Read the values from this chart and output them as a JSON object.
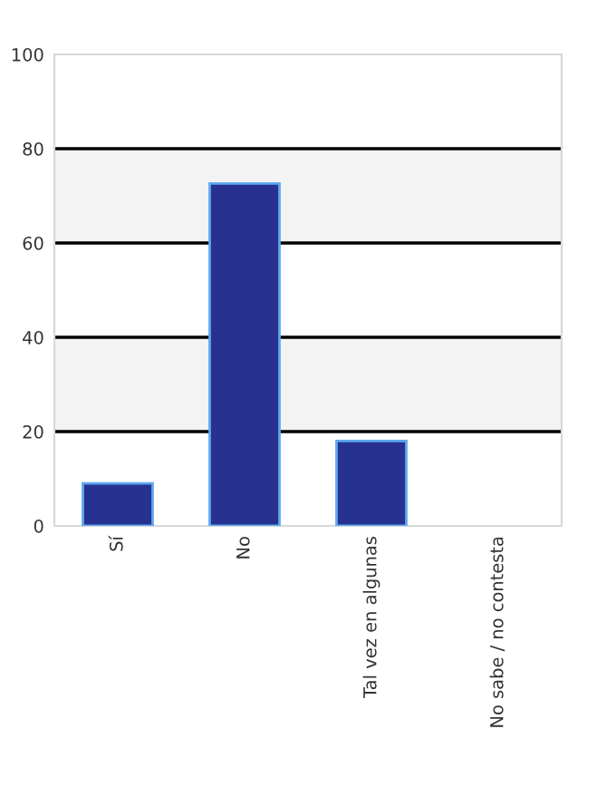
{
  "chart_data": {
    "type": "bar",
    "categories": [
      "Sí",
      "No",
      "Tal vez en algunas",
      "No sabe / no contesta"
    ],
    "values": [
      9,
      72.6,
      18,
      0
    ],
    "color": "#27318f",
    "ylim": [
      0,
      100
    ],
    "yticks": [
      0,
      20,
      40,
      60,
      80,
      100
    ],
    "grid": "y",
    "bands": [
      {
        "axis": "y",
        "from": 20,
        "to": 40,
        "color": "#f3f3f3"
      },
      {
        "axis": "y",
        "from": 60,
        "to": 80,
        "color": "#f3f3f3"
      }
    ]
  }
}
